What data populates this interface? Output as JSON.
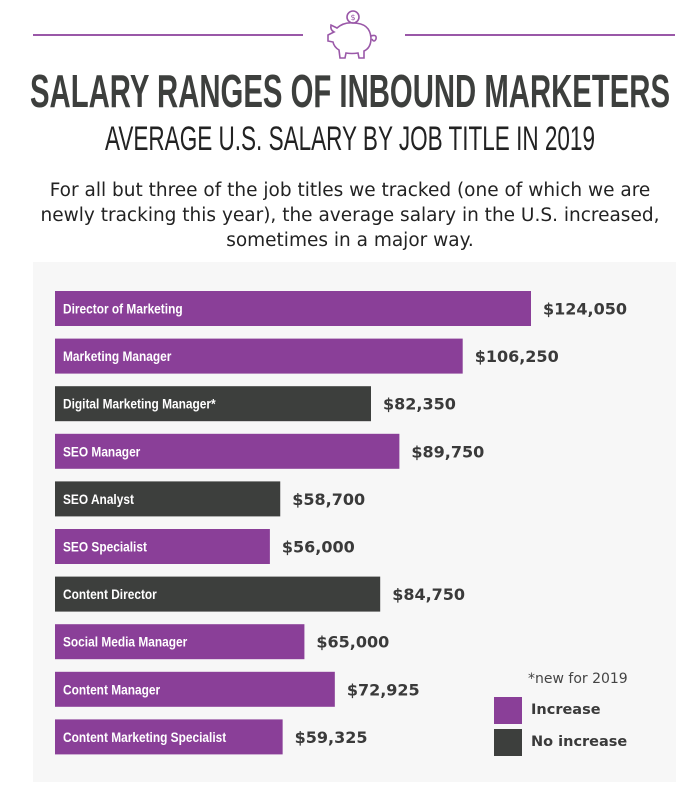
{
  "header": {
    "icon": "piggy-bank-dollar-icon",
    "title": "SALARY RANGES OF INBOUND MARKETERS",
    "subtitle": "AVERAGE U.S. SALARY BY JOB TITLE IN 2019",
    "intro": "For all but three of the job titles we tracked (one of which we are newly tracking this year), the average salary in the U.S. increased, sometimes in a major way."
  },
  "colors": {
    "increase": "#8a3f98",
    "no_increase": "#3d3f3d",
    "background": "#f7f7f7"
  },
  "chart_data": {
    "type": "bar",
    "orientation": "horizontal",
    "categories": [
      "Director of Marketing",
      "Marketing Manager",
      "Digital Marketing Manager*",
      "SEO Manager",
      "SEO Analyst",
      "SEO Specialist",
      "Content Director",
      "Social Media Manager",
      "Content Manager",
      "Content Marketing Specialist"
    ],
    "values": [
      124050,
      106250,
      82350,
      89750,
      58700,
      56000,
      84750,
      65000,
      72925,
      59325
    ],
    "value_labels": [
      "$124,050",
      "$106,250",
      "$82,350",
      "$89,750",
      "$58,700",
      "$56,000",
      "$84,750",
      "$65,000",
      "$72,925",
      "$59,325"
    ],
    "status": [
      "increase",
      "increase",
      "no_increase",
      "increase",
      "no_increase",
      "increase",
      "no_increase",
      "increase",
      "increase",
      "increase"
    ],
    "legend": [
      {
        "key": "increase",
        "label": "Increase"
      },
      {
        "key": "no_increase",
        "label": "No increase"
      }
    ],
    "legend_position": "bottom-right",
    "footnote": "*new for 2019",
    "grid": false
  }
}
